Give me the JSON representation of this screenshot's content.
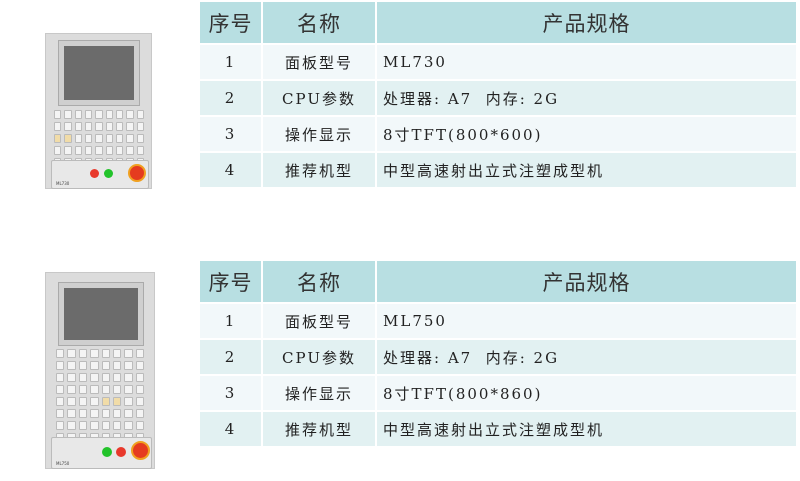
{
  "tables": [
    {
      "headers": [
        "序号",
        "名称",
        "产品规格"
      ],
      "rows": [
        [
          "1",
          "面板型号",
          "ML730"
        ],
        [
          "2",
          "CPU参数",
          "处理器: A7  内存: 2G"
        ],
        [
          "3",
          "操作显示",
          "8寸TFT(800*600)"
        ],
        [
          "4",
          "推荐机型",
          "中型高速射出立式注塑成型机"
        ]
      ],
      "panel_label": "ML730"
    },
    {
      "headers": [
        "序号",
        "名称",
        "产品规格"
      ],
      "rows": [
        [
          "1",
          "面板型号",
          "ML750"
        ],
        [
          "2",
          "CPU参数",
          "处理器: A7  内存: 2G"
        ],
        [
          "3",
          "操作显示",
          "8寸TFT(800*860)"
        ],
        [
          "4",
          "推荐机型",
          "中型高速射出立式注塑成型机"
        ]
      ],
      "panel_label": "ML750"
    }
  ],
  "colors": {
    "header_bg": "#b8dfe2",
    "row_light": "#f2f8fa",
    "row_dark": "#e2f1f2",
    "stop_button": "#e53b1f",
    "green_button": "#22c32a",
    "red_button": "#e8392c"
  }
}
